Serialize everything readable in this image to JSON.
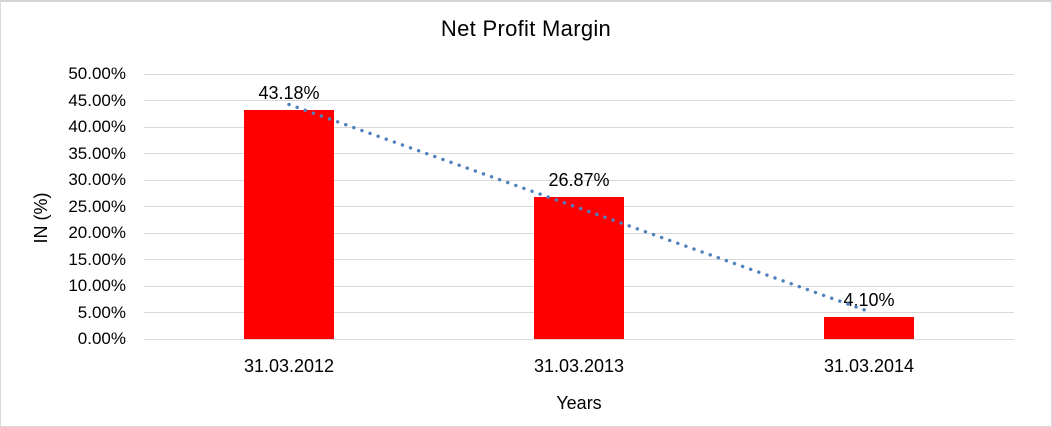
{
  "chart": {
    "title": "Net Profit Margin",
    "x_axis_title": "Years",
    "y_axis_title": "IN (%)"
  },
  "chart_data": {
    "type": "bar",
    "title": "Net Profit Margin",
    "xlabel": "Years",
    "ylabel": "IN (%)",
    "categories": [
      "31.03.2012",
      "31.03.2013",
      "31.03.2014"
    ],
    "values": [
      43.18,
      26.87,
      4.1
    ],
    "data_labels": [
      "43.18%",
      "26.87%",
      "4.10%"
    ],
    "ylim": [
      0,
      50
    ],
    "y_tick_step": 5,
    "y_tick_labels": [
      "0.00%",
      "5.00%",
      "10.00%",
      "15.00%",
      "20.00%",
      "25.00%",
      "30.00%",
      "35.00%",
      "40.00%",
      "45.00%",
      "50.00%"
    ],
    "grid": true,
    "legend": "none",
    "bar_color": "#ff0000",
    "gridline_color": "#d9d9d9",
    "text_color": "#000000",
    "trendline": {
      "type": "linear",
      "style": "dotted",
      "color": "#4f81bd",
      "start_value": 44.25,
      "end_value": 5.18
    }
  }
}
